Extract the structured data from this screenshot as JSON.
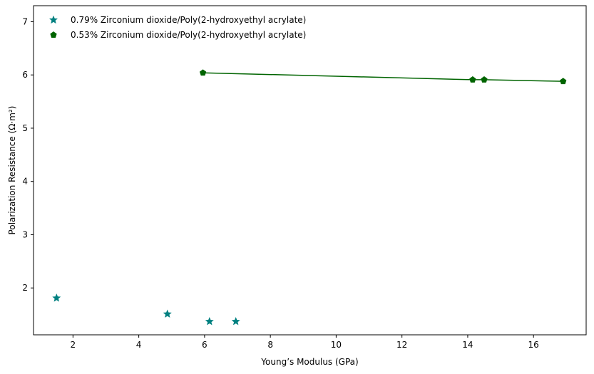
{
  "chart_data": {
    "type": "scatter",
    "title": "",
    "xlabel": "Young’s Modulus (GPa)",
    "ylabel": "Polarization Resistance (Ω·m²)",
    "xlim": [
      0.8,
      17.6
    ],
    "ylim": [
      1.12,
      7.3
    ],
    "xticks": [
      2,
      4,
      6,
      8,
      10,
      12,
      14,
      16
    ],
    "yticks": [
      2,
      3,
      4,
      5,
      6,
      7
    ],
    "grid": false,
    "legend_position": "top-left",
    "series": [
      {
        "name": "0.79% Zirconium dioxide/Poly(2-hydroxyethyl acrylate)",
        "marker": "star",
        "color": "#008080",
        "connect": false,
        "x": [
          1.5,
          4.87,
          6.15,
          6.95
        ],
        "y": [
          1.81,
          1.51,
          1.37,
          1.37
        ]
      },
      {
        "name": "0.53% Zirconium dioxide/Poly(2-hydroxyethyl acrylate)",
        "marker": "pentagon",
        "color": "#006400",
        "connect": true,
        "x": [
          5.95,
          14.15,
          14.5,
          16.9
        ],
        "y": [
          6.04,
          5.91,
          5.91,
          5.88
        ]
      }
    ]
  }
}
